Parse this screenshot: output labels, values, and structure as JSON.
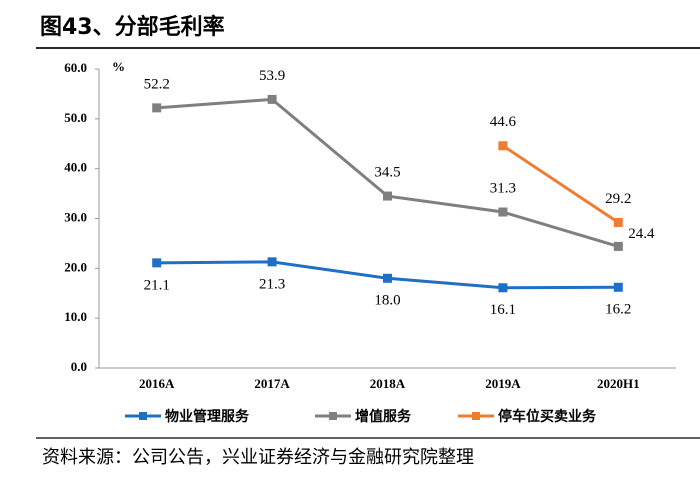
{
  "title": "图43、分部毛利率",
  "source": "资料来源：公司公告，兴业证券经济与金融研究院整理",
  "chart_data": {
    "type": "line",
    "unit_label": "%",
    "categories": [
      "2016A",
      "2017A",
      "2018A",
      "2019A",
      "2020H1"
    ],
    "ylim": [
      0,
      60
    ],
    "yticks": [
      {
        "value": 0,
        "label": "0.0"
      },
      {
        "value": 10,
        "label": "10.0"
      },
      {
        "value": 20,
        "label": "20.0"
      },
      {
        "value": 30,
        "label": "30.0"
      },
      {
        "value": 40,
        "label": "40.0"
      },
      {
        "value": 50,
        "label": "50.0"
      },
      {
        "value": 60,
        "label": "60.0"
      }
    ],
    "grid": false,
    "legend": "bottom",
    "series": [
      {
        "name": "物业管理服务",
        "color": "#1f6fc5",
        "values": [
          21.1,
          21.3,
          18.0,
          16.1,
          16.2
        ],
        "value_labels": [
          "21.1",
          "21.3",
          "18.0",
          "16.1",
          "16.2"
        ]
      },
      {
        "name": "增值服务",
        "color": "#7f7f7f",
        "values": [
          52.2,
          53.9,
          34.5,
          31.3,
          24.4
        ],
        "value_labels": [
          "52.2",
          "53.9",
          "34.5",
          "31.3",
          "24.4"
        ]
      },
      {
        "name": "停车位买卖业务",
        "color": "#ed7d31",
        "values": [
          null,
          null,
          null,
          44.6,
          29.2
        ],
        "value_labels": [
          null,
          null,
          null,
          "44.6",
          "29.2"
        ]
      }
    ]
  }
}
